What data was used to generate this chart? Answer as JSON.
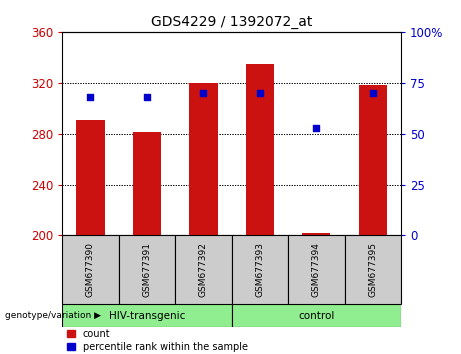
{
  "title": "GDS4229 / 1392072_at",
  "samples": [
    "GSM677390",
    "GSM677391",
    "GSM677392",
    "GSM677393",
    "GSM677394",
    "GSM677395"
  ],
  "count_values": [
    291,
    281,
    320,
    335,
    202,
    318
  ],
  "percentile_values": [
    68,
    68,
    70,
    70,
    53,
    70
  ],
  "ymin": 200,
  "ymax": 360,
  "yticks": [
    200,
    240,
    280,
    320,
    360
  ],
  "y2min": 0,
  "y2max": 100,
  "y2ticks": [
    0,
    25,
    50,
    75,
    100
  ],
  "bar_color": "#cc1111",
  "dot_color": "#0000cc",
  "bar_width": 0.5,
  "group_hiv_label": "HIV-transgenic",
  "group_ctrl_label": "control",
  "legend_count_label": "count",
  "legend_percentile_label": "percentile rank within the sample",
  "axis_label_color_left": "#cc0000",
  "axis_label_color_right": "#0000cc",
  "background_color": "#ffffff",
  "xticklabel_bg": "#cccccc",
  "group_bg": "#90EE90"
}
